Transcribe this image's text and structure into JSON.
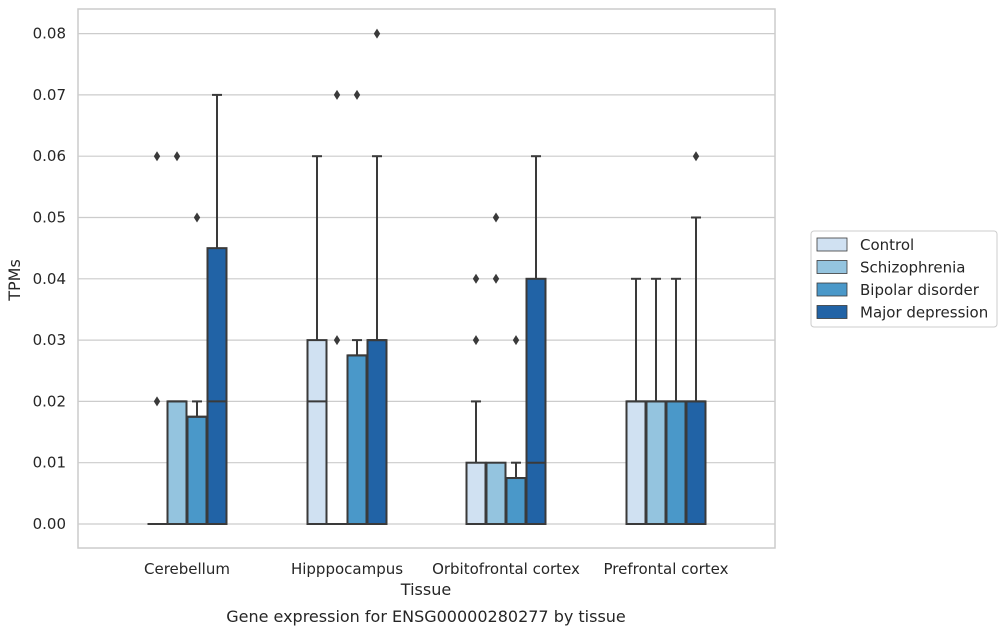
{
  "chart_data": {
    "type": "boxplot",
    "xlabel": "Tissue",
    "ylabel": "TPMs",
    "caption": "Gene expression for ENSG00000280277 by tissue",
    "ylim": [
      -0.004,
      0.084
    ],
    "yticks": [
      "0.00",
      "0.01",
      "0.02",
      "0.03",
      "0.04",
      "0.05",
      "0.06",
      "0.07",
      "0.08"
    ],
    "grid": true,
    "legend_position": "right-center",
    "categories": [
      "Cerebellum",
      "Hipppocampus",
      "Orbitofrontal cortex",
      "Prefrontal cortex"
    ],
    "series": [
      {
        "name": "Control",
        "color": "#d0e1f2",
        "boxes": [
          {
            "q1": 0.0,
            "median": 0.0,
            "q3": 0.0,
            "whislo": 0.0,
            "whishi": 0.0,
            "fliers": [
              0.02,
              0.06
            ]
          },
          {
            "q1": 0.0,
            "median": 0.02,
            "q3": 0.03,
            "whislo": 0.0,
            "whishi": 0.06,
            "fliers": []
          },
          {
            "q1": 0.0,
            "median": 0.0,
            "q3": 0.01,
            "whislo": 0.0,
            "whishi": 0.02,
            "fliers": [
              0.03,
              0.04
            ]
          },
          {
            "q1": 0.0,
            "median": 0.02,
            "q3": 0.02,
            "whislo": 0.0,
            "whishi": 0.04,
            "fliers": []
          }
        ]
      },
      {
        "name": "Schizophrenia",
        "color": "#94c4df",
        "boxes": [
          {
            "q1": 0.0,
            "median": 0.02,
            "q3": 0.02,
            "whislo": 0.0,
            "whishi": 0.02,
            "fliers": [
              0.06
            ]
          },
          {
            "q1": 0.0,
            "median": 0.0,
            "q3": 0.0,
            "whislo": 0.0,
            "whishi": 0.0,
            "fliers": [
              0.03,
              0.07
            ]
          },
          {
            "q1": 0.0,
            "median": 0.0,
            "q3": 0.01,
            "whislo": 0.0,
            "whishi": 0.01,
            "fliers": [
              0.04,
              0.05
            ]
          },
          {
            "q1": 0.0,
            "median": 0.02,
            "q3": 0.02,
            "whislo": 0.0,
            "whishi": 0.04,
            "fliers": []
          }
        ]
      },
      {
        "name": "Bipolar disorder",
        "color": "#4a98c9",
        "boxes": [
          {
            "q1": 0.0,
            "median": 0.0175,
            "q3": 0.0175,
            "whislo": 0.0,
            "whishi": 0.02,
            "fliers": [
              0.05
            ]
          },
          {
            "q1": 0.0,
            "median": 0.0275,
            "q3": 0.0275,
            "whislo": 0.0,
            "whishi": 0.03,
            "fliers": [
              0.07
            ]
          },
          {
            "q1": 0.0,
            "median": 0.0075,
            "q3": 0.0075,
            "whislo": 0.0,
            "whishi": 0.01,
            "fliers": [
              0.03
            ]
          },
          {
            "q1": 0.0,
            "median": 0.02,
            "q3": 0.02,
            "whislo": 0.0,
            "whishi": 0.04,
            "fliers": []
          }
        ]
      },
      {
        "name": "Major depression",
        "color": "#2163a6",
        "boxes": [
          {
            "q1": 0.0,
            "median": 0.02,
            "q3": 0.045,
            "whislo": 0.0,
            "whishi": 0.07,
            "fliers": []
          },
          {
            "q1": 0.0,
            "median": 0.03,
            "q3": 0.03,
            "whislo": 0.0,
            "whishi": 0.06,
            "fliers": [
              0.08
            ]
          },
          {
            "q1": 0.0,
            "median": 0.01,
            "q3": 0.04,
            "whislo": 0.0,
            "whishi": 0.06,
            "fliers": []
          },
          {
            "q1": 0.0,
            "median": 0.02,
            "q3": 0.02,
            "whislo": 0.0,
            "whishi": 0.05,
            "fliers": [
              0.06
            ]
          }
        ]
      }
    ]
  }
}
